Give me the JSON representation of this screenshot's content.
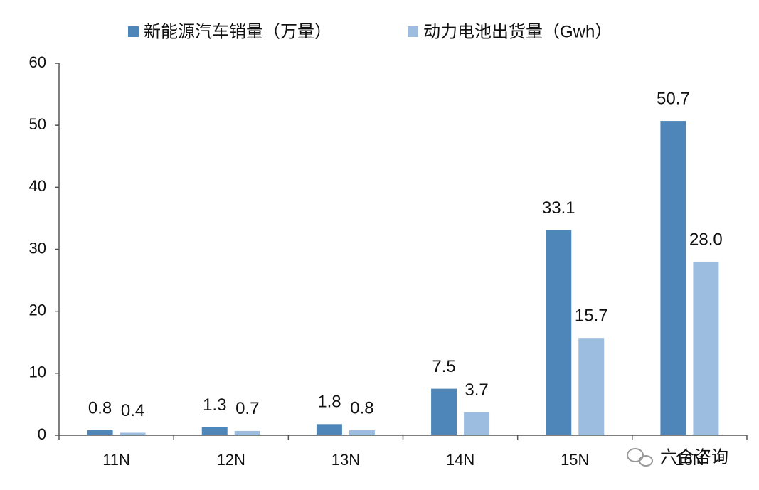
{
  "chart_data": {
    "type": "bar",
    "categories": [
      "11N",
      "12N",
      "13N",
      "14N",
      "15N",
      "16N"
    ],
    "series": [
      {
        "name": "新能源汽车销量（万量）",
        "color": "#4f86b9",
        "values": [
          0.8,
          1.3,
          1.8,
          7.5,
          33.1,
          50.7
        ],
        "value_labels": [
          "0.8",
          "1.3",
          "1.8",
          "7.5",
          "33.1",
          "50.7"
        ]
      },
      {
        "name": "动力电池出货量（Gwh）",
        "color": "#9dbde0",
        "values": [
          0.4,
          0.7,
          0.8,
          3.7,
          15.7,
          28.0
        ],
        "value_labels": [
          "0.4",
          "0.7",
          "0.8",
          "3.7",
          "15.7",
          "28.0"
        ]
      }
    ],
    "ylim": [
      0,
      60
    ],
    "yticks": [
      0,
      10,
      20,
      30,
      40,
      50,
      60
    ],
    "grid": false,
    "legend": "top"
  },
  "watermark": "六合咨询"
}
